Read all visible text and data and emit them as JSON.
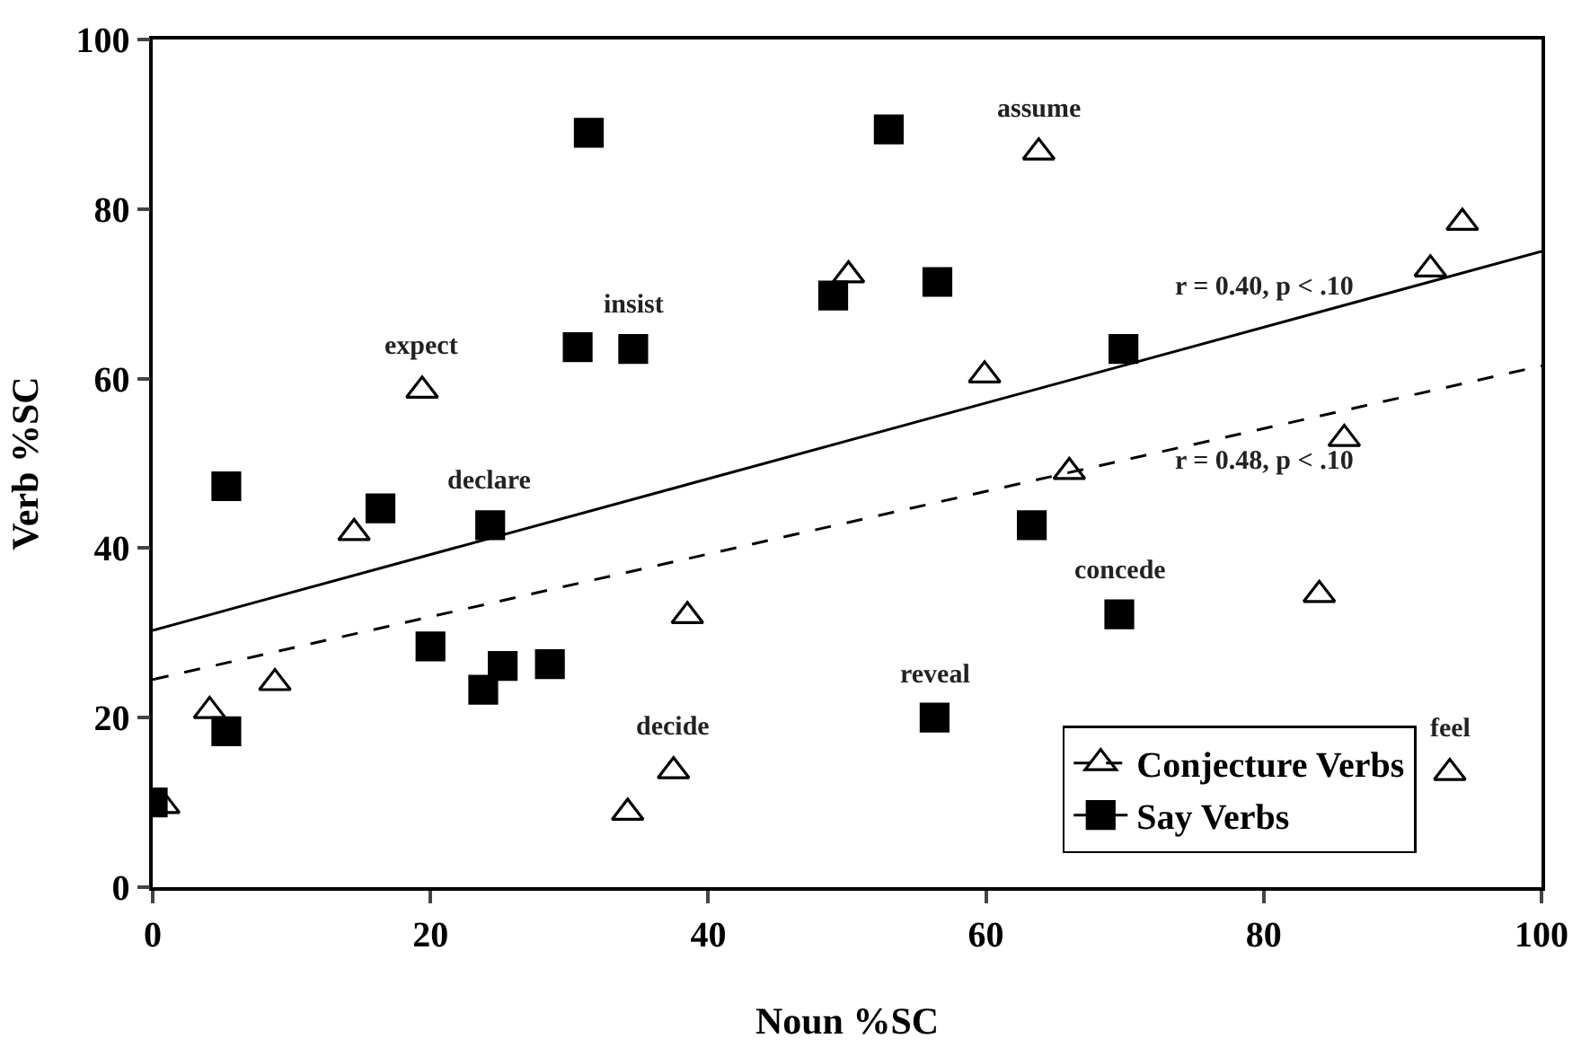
{
  "chart_data": {
    "type": "scatter",
    "xlabel": "Noun %SC",
    "ylabel": "Verb %SC",
    "xlim": [
      0,
      100
    ],
    "ylim": [
      0,
      100
    ],
    "xticks": [
      0,
      20,
      40,
      60,
      80,
      100
    ],
    "yticks": [
      0,
      20,
      40,
      60,
      80,
      100
    ],
    "legend": "bottom right",
    "series": [
      {
        "name": "Conjecture Verbs",
        "color": "#000000",
        "marker": "triangle",
        "line_style": "dashed",
        "x": [
          0.8,
          4.1,
          8.8,
          14.5,
          19.4,
          34.2,
          37.5,
          38.5,
          50.1,
          59.9,
          66.0,
          63.8,
          84.0,
          85.8,
          92.0,
          94.3,
          93.4
        ],
        "values": [
          9.6,
          20.8,
          24.1,
          41.8,
          58.6,
          8.8,
          13.7,
          32.0,
          72.2,
          60.4,
          49.0,
          86.7,
          34.5,
          52.9,
          72.9,
          78.4,
          13.5
        ]
      },
      {
        "name": "Say Verbs",
        "color": "#000000",
        "marker": "square",
        "line_style": "solid",
        "x": [
          0,
          5.3,
          5.3,
          16.4,
          24.3,
          20.0,
          23.8,
          25.2,
          28.6,
          31.4,
          30.6,
          34.6,
          49.0,
          56.5,
          53.0,
          69.9,
          63.3,
          69.6,
          56.3
        ],
        "values": [
          10.0,
          18.4,
          47.3,
          44.7,
          42.7,
          28.4,
          23.3,
          26.1,
          26.3,
          89.0,
          63.7,
          63.5,
          69.8,
          71.4,
          89.4,
          63.5,
          42.7,
          32.2,
          20.0
        ]
      },
      {
        "type": "line",
        "color": "#000000",
        "line_style": "dashed",
        "x": [
          0,
          100
        ],
        "values": [
          24.5,
          61.5
        ]
      },
      {
        "type": "line",
        "color": "#000000",
        "line_style": "solid",
        "x": [
          0,
          100
        ],
        "values": [
          30.3,
          75.0
        ]
      }
    ],
    "annotations": [
      {
        "text": "assume",
        "x": 63.8,
        "y": 86.7
      },
      {
        "text": "expect",
        "x": 19.4,
        "y": 58.6
      },
      {
        "text": "insist",
        "x": 34.6,
        "y": 63.5
      },
      {
        "text": "declare",
        "x": 24.3,
        "y": 42.7
      },
      {
        "text": "decide",
        "x": 37.5,
        "y": 13.7
      },
      {
        "text": "reveal",
        "x": 56.3,
        "y": 20.0
      },
      {
        "text": "concede",
        "x": 69.6,
        "y": 32.2
      },
      {
        "text": "feel",
        "x": 93.4,
        "y": 13.5
      },
      {
        "text": "r = 0.40, p < .10",
        "x": 80,
        "y": 66.1
      },
      {
        "text": "r = 0.48, p < .10",
        "x": 80,
        "y": 54.1
      }
    ]
  }
}
